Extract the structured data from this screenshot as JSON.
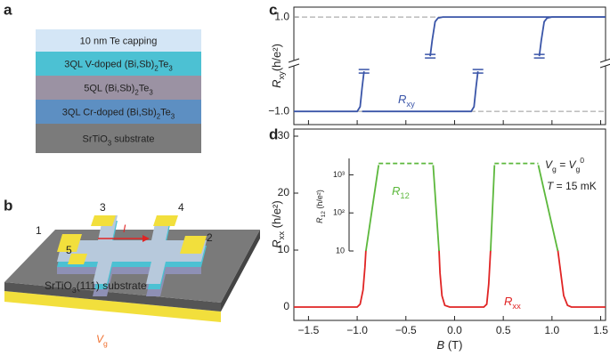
{
  "panel_labels": [
    "a",
    "b",
    "c",
    "d"
  ],
  "layers": [
    {
      "parts": [
        "10 nm Te capping"
      ],
      "color": "#d4e6f6"
    },
    {
      "parts": [
        "3QL  V-doped (Bi,Sb)",
        "2",
        "Te",
        "3"
      ],
      "color": "#4cc1d3"
    },
    {
      "parts": [
        "5QL  (Bi,Sb)",
        "2",
        "Te",
        "3"
      ],
      "color": "#9b92a3"
    },
    {
      "parts": [
        "3QL  Cr-doped (Bi,Sb)",
        "2",
        "Te",
        "3"
      ],
      "color": "#5d8fc2"
    },
    {
      "parts": [
        "SrTiO",
        "3",
        " substrate"
      ],
      "color": "#7b7b7b"
    }
  ],
  "device": {
    "contacts": [
      "1",
      "2",
      "3",
      "4",
      "5"
    ],
    "current": "I",
    "substrate": [
      "SrTiO",
      "3",
      "(111) substrate"
    ],
    "gate": [
      "V",
      "g"
    ]
  },
  "chart_data": [
    {
      "type": "line",
      "ylabel": [
        "R",
        "xy",
        "(h/e²)"
      ],
      "annotation": [
        "R",
        "xy"
      ],
      "xlim": [
        -1.65,
        1.55
      ],
      "ylim": [
        -1.28,
        1.21
      ],
      "yticks": [
        {
          "value": 1,
          "label": "1.0"
        },
        {
          "value": -1,
          "label": "−1.0"
        }
      ],
      "xticks": [
        -1.5,
        -1,
        -0.5,
        0,
        0.5,
        1,
        1.5
      ],
      "series": [
        {
          "color": "#3a55a8",
          "x": [
            -0.25,
            -0.23,
            -0.2,
            -0.17,
            -0.12,
            1.55
          ],
          "values": [
            0.17,
            0.5,
            0.9,
            0.98,
            1,
            1
          ]
        },
        {
          "color": "#3a55a8",
          "x": [
            0.87,
            0.89,
            0.92,
            0.95,
            1.0,
            1.55
          ],
          "values": [
            0.17,
            0.5,
            0.9,
            0.98,
            1,
            1
          ]
        },
        {
          "color": "#3a55a8",
          "x": [
            -1.65,
            -1.0,
            -0.97,
            -0.95,
            -0.93
          ],
          "values": [
            -1,
            -1,
            -0.9,
            -0.5,
            -0.15
          ]
        },
        {
          "color": "#3a55a8",
          "x": [
            -0.95,
            0.17,
            0.2,
            0.22,
            0.24
          ],
          "values": [
            -1,
            -1,
            -0.9,
            -0.5,
            -0.15
          ]
        }
      ]
    },
    {
      "type": "line",
      "ylabel": [
        "R",
        "xx",
        " (h/e²)"
      ],
      "xlabel": [
        "B",
        " (T)"
      ],
      "annotation": [
        "R",
        "xx"
      ],
      "notes": [
        [
          "V",
          "g",
          " = V",
          "g",
          "0"
        ],
        [
          "T",
          " = 15 mK"
        ]
      ],
      "xlim": [
        -1.65,
        1.55
      ],
      "ylim": [
        -2.34,
        31.25
      ],
      "yticks": [
        0,
        10,
        20,
        30
      ],
      "xticks": [
        {
          "value": -1.5,
          "label": "−1.5"
        },
        {
          "value": -1,
          "label": "−1.0"
        },
        {
          "value": -0.5,
          "label": "−0.5"
        },
        {
          "value": 0,
          "label": "0.0"
        },
        {
          "value": 0.5,
          "label": "0.5"
        },
        {
          "value": 1,
          "label": "1.0"
        },
        {
          "value": 1.5,
          "label": "1.5"
        }
      ],
      "series": [
        {
          "color": "#e02424",
          "x": [
            -1.65,
            -1.0,
            -0.97,
            -0.94,
            -0.92,
            -0.91,
            null,
            -0.16,
            -0.15,
            -0.13,
            -0.1,
            -0.05,
            0.3,
            0.33,
            0.35,
            0.37,
            null,
            1.06,
            1.09,
            1.12,
            1.16,
            1.2,
            1.55
          ],
          "values": [
            0,
            0,
            0.5,
            3,
            7,
            10,
            null,
            10,
            6,
            2,
            0.3,
            0,
            0,
            0.5,
            4,
            10,
            null,
            10,
            6,
            2,
            0.3,
            0,
            0
          ]
        }
      ]
    },
    {
      "type": "line",
      "log_y": true,
      "ylabel": [
        "R",
        "12",
        " (h/e²)"
      ],
      "annotation": [
        "R",
        "12"
      ],
      "ylim": [
        10,
        2700
      ],
      "yticks": [
        10,
        {
          "value": 100,
          "label": "10²"
        },
        {
          "value": 1000,
          "label": "10³"
        }
      ],
      "series": [
        {
          "color": "#5cb83c",
          "style": "solid",
          "x": [
            -0.91,
            -0.78,
            null,
            -0.22,
            -0.16,
            null,
            0.37,
            0.41,
            null,
            0.86,
            1.06
          ],
          "values": [
            10,
            1800,
            null,
            1800,
            10,
            null,
            10,
            1800,
            null,
            1800,
            10
          ]
        },
        {
          "color": "#5cb83c",
          "style": "dashed",
          "x": [
            -0.78,
            -0.22,
            null,
            0.41,
            0.86
          ],
          "values": [
            2000,
            2000,
            null,
            2000,
            2000
          ]
        }
      ]
    }
  ]
}
